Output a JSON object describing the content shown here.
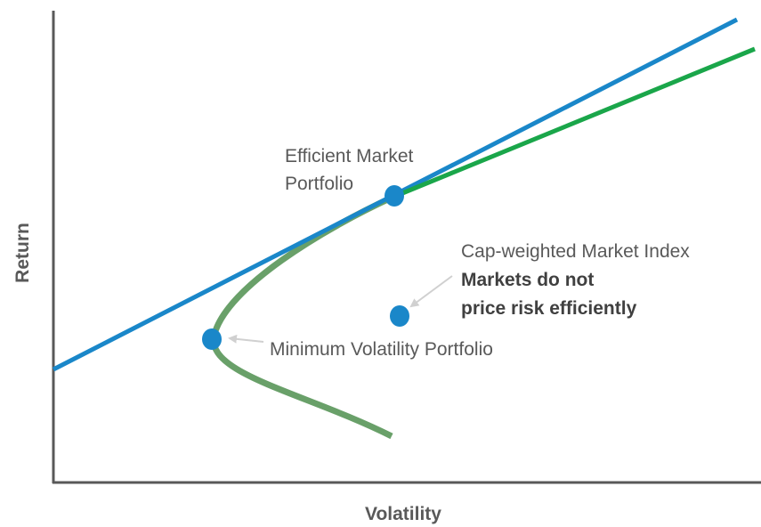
{
  "axes": {
    "x_label": "Volatility",
    "y_label": "Return"
  },
  "annotations": {
    "efficient_market": [
      "Efficient Market",
      "Portfolio"
    ],
    "cap_weighted": {
      "title": "Cap-weighted Market Index",
      "note": [
        "Markets do not",
        "price risk efficiently"
      ]
    },
    "min_vol": "Minimum Volatility Portfolio"
  }
}
